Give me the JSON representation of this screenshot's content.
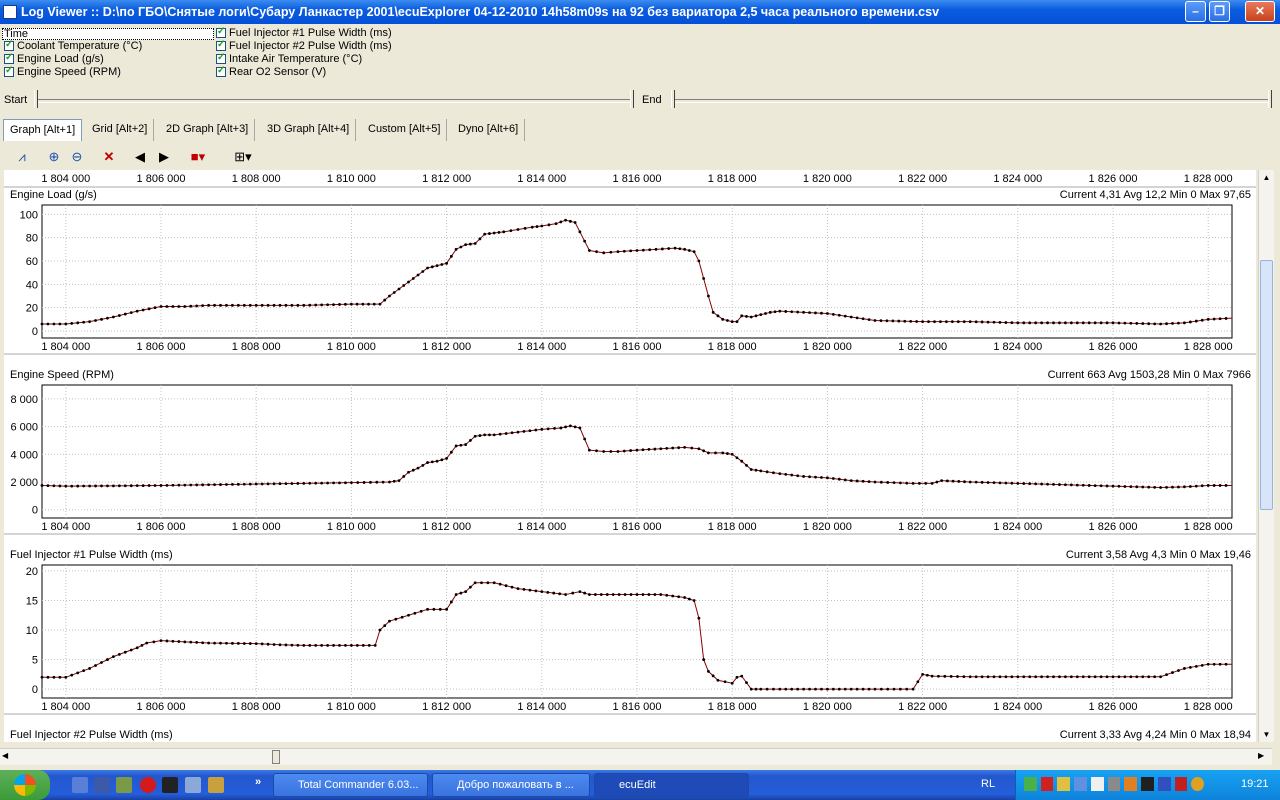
{
  "window": {
    "title": "Log Viewer :: D:\\по ГБО\\Снятые логи\\Субару Ланкастер 2001\\ecuExplorer  04-12-2010 14h58m09s на 92 без вариатора 2,5 часа реального времени.csv",
    "min_glyph": "–",
    "max_glyph": "❐",
    "close_glyph": "✕"
  },
  "channels": {
    "time_label": "Time",
    "left": [
      "Coolant Temperature (°C)",
      "Engine Load (g/s)",
      "Engine Speed (RPM)"
    ],
    "right": [
      "Fuel Injector #1 Pulse Width (ms)",
      "Fuel Injector #2 Pulse Width (ms)",
      "Intake Air Temperature (°C)",
      "Rear O2 Sensor (V)"
    ]
  },
  "range": {
    "start_label": "Start",
    "end_label": "End"
  },
  "tabs": [
    "Graph [Alt+1]",
    "Grid [Alt+2]",
    "2D Graph [Alt+3]",
    "3D Graph [Alt+4]",
    "Custom [Alt+5]",
    "Dyno [Alt+6]"
  ],
  "toolbar_icons": [
    "graph-icon",
    "zoom-in-icon",
    "zoom-out-icon",
    "delete-icon",
    "previous-icon",
    "next-icon",
    "color-icon",
    "layout-icon"
  ],
  "chart_data": [
    {
      "type": "line",
      "title": "Engine Load (g/s)",
      "stats": "Current 4,31 Avg 12,2 Min 0 Max 97,65",
      "xlim": [
        1803500,
        1828500
      ],
      "ylim": [
        -6,
        108
      ],
      "x_ticks": [
        1804000,
        1806000,
        1808000,
        1810000,
        1812000,
        1814000,
        1816000,
        1818000,
        1820000,
        1822000,
        1824000,
        1826000,
        1828000
      ],
      "x_tick_labels": [
        "1 804 000",
        "1 806 000",
        "1 808 000",
        "1 810 000",
        "1 812 000",
        "1 814 000",
        "1 816 000",
        "1 818 000",
        "1 820 000",
        "1 822 000",
        "1 824 000",
        "1 826 000",
        "1 828 000"
      ],
      "y_ticks": [
        0,
        20,
        40,
        60,
        80,
        100
      ],
      "y_tick_labels": [
        "0",
        "20",
        "40",
        "60",
        "80",
        "100"
      ],
      "series": [
        {
          "color": "#8b0000",
          "x": [
            1803500,
            1804000,
            1804500,
            1805000,
            1805500,
            1806000,
            1806500,
            1807000,
            1808000,
            1809000,
            1810000,
            1810600,
            1810800,
            1811000,
            1811200,
            1811400,
            1811600,
            1811800,
            1812000,
            1812200,
            1812400,
            1812600,
            1812800,
            1813000,
            1813200,
            1813500,
            1813800,
            1814000,
            1814300,
            1814500,
            1814700,
            1814800,
            1815000,
            1815300,
            1815600,
            1816000,
            1816400,
            1816800,
            1817000,
            1817200,
            1817300,
            1817400,
            1817500,
            1817600,
            1817800,
            1818000,
            1818100,
            1818200,
            1818400,
            1818600,
            1818800,
            1819000,
            1819500,
            1820000,
            1820500,
            1821000,
            1822000,
            1823000,
            1824000,
            1825000,
            1826000,
            1827000,
            1827500,
            1828000,
            1828500
          ],
          "y": [
            6,
            6,
            8,
            12,
            17,
            21,
            21,
            22,
            22,
            22,
            23,
            23,
            30,
            36,
            42,
            48,
            54,
            56,
            58,
            70,
            74,
            75,
            83,
            84,
            85,
            87,
            89,
            90,
            92,
            95,
            93,
            85,
            69,
            67,
            68,
            69,
            70,
            71,
            70,
            68,
            60,
            45,
            30,
            16,
            10,
            8,
            8,
            13,
            12,
            14,
            16,
            17,
            16,
            15,
            12,
            9,
            8,
            8,
            7,
            7,
            7,
            6,
            7,
            10,
            11
          ]
        }
      ]
    },
    {
      "type": "line",
      "title": "Engine Speed (RPM)",
      "stats": "Current 663 Avg 1503,28 Min 0 Max 7966",
      "xlim": [
        1803500,
        1828500
      ],
      "ylim": [
        -600,
        9000
      ],
      "x_ticks": [
        1804000,
        1806000,
        1808000,
        1810000,
        1812000,
        1814000,
        1816000,
        1818000,
        1820000,
        1822000,
        1824000,
        1826000,
        1828000
      ],
      "x_tick_labels": [
        "1 804 000",
        "1 806 000",
        "1 808 000",
        "1 810 000",
        "1 812 000",
        "1 814 000",
        "1 816 000",
        "1 818 000",
        "1 820 000",
        "1 822 000",
        "1 824 000",
        "1 826 000",
        "1 828 000"
      ],
      "y_ticks": [
        0,
        2000,
        4000,
        6000,
        8000
      ],
      "y_tick_labels": [
        "0",
        "2 000",
        "4 000",
        "6 000",
        "8 000"
      ],
      "series": [
        {
          "color": "#8b0000",
          "x": [
            1803500,
            1804000,
            1805000,
            1806000,
            1807000,
            1808000,
            1809000,
            1810000,
            1810800,
            1811000,
            1811200,
            1811400,
            1811600,
            1811800,
            1812000,
            1812200,
            1812400,
            1812600,
            1812800,
            1813000,
            1813500,
            1814000,
            1814400,
            1814600,
            1814800,
            1815000,
            1815300,
            1815600,
            1816000,
            1816500,
            1817000,
            1817300,
            1817500,
            1817800,
            1818000,
            1818200,
            1818400,
            1818600,
            1819000,
            1819500,
            1820000,
            1820500,
            1821000,
            1821800,
            1822200,
            1822400,
            1823000,
            1824000,
            1825000,
            1826000,
            1826500,
            1827000,
            1827500,
            1828000,
            1828500
          ],
          "y": [
            1750,
            1700,
            1720,
            1750,
            1800,
            1850,
            1900,
            1950,
            2000,
            2100,
            2700,
            3000,
            3400,
            3500,
            3700,
            4600,
            4700,
            5300,
            5400,
            5400,
            5600,
            5800,
            5900,
            6050,
            5900,
            4300,
            4200,
            4200,
            4300,
            4400,
            4500,
            4400,
            4100,
            4100,
            4000,
            3500,
            2900,
            2800,
            2600,
            2400,
            2300,
            2100,
            2000,
            1900,
            1900,
            2100,
            2000,
            1900,
            1800,
            1700,
            1650,
            1600,
            1650,
            1750,
            1750
          ]
        }
      ]
    },
    {
      "type": "line",
      "title": "Fuel Injector #1 Pulse Width (ms)",
      "stats": "Current 3,58 Avg 4,3 Min 0 Max 19,46",
      "xlim": [
        1803500,
        1828500
      ],
      "ylim": [
        -1.5,
        21
      ],
      "x_ticks": [
        1804000,
        1806000,
        1808000,
        1810000,
        1812000,
        1814000,
        1816000,
        1818000,
        1820000,
        1822000,
        1824000,
        1826000,
        1828000
      ],
      "x_tick_labels": [
        "1 804 000",
        "1 806 000",
        "1 808 000",
        "1 810 000",
        "1 812 000",
        "1 814 000",
        "1 816 000",
        "1 818 000",
        "1 820 000",
        "1 822 000",
        "1 824 000",
        "1 826 000",
        "1 828 000"
      ],
      "y_ticks": [
        0,
        5,
        10,
        15,
        20
      ],
      "y_tick_labels": [
        "0",
        "5",
        "10",
        "15",
        "20"
      ],
      "series": [
        {
          "color": "#8b0000",
          "x": [
            1803500,
            1804000,
            1804500,
            1805000,
            1805500,
            1805700,
            1806000,
            1806500,
            1807000,
            1808000,
            1808500,
            1809000,
            1810000,
            1810500,
            1810600,
            1810800,
            1811200,
            1811600,
            1812000,
            1812200,
            1812400,
            1812600,
            1813000,
            1813500,
            1814000,
            1814500,
            1814800,
            1815000,
            1815500,
            1816000,
            1816500,
            1817000,
            1817200,
            1817300,
            1817400,
            1817500,
            1817700,
            1818000,
            1818100,
            1818200,
            1818400,
            1818600,
            1819000,
            1820000,
            1821000,
            1821800,
            1822000,
            1822200,
            1823000,
            1824000,
            1825000,
            1826000,
            1827000,
            1827500,
            1828000,
            1828500
          ],
          "y": [
            2,
            2,
            3.5,
            5.5,
            7,
            7.8,
            8.2,
            8,
            7.8,
            7.7,
            7.5,
            7.4,
            7.4,
            7.4,
            10,
            11.5,
            12.5,
            13.5,
            13.5,
            16,
            16.5,
            18,
            18,
            17,
            16.5,
            16,
            16.5,
            16,
            16,
            16,
            16,
            15.5,
            15,
            12,
            5,
            3,
            1.5,
            1,
            2,
            2.2,
            0,
            0,
            0,
            0,
            0,
            0,
            2.5,
            2.2,
            2.1,
            2.1,
            2.1,
            2.1,
            2.1,
            3.5,
            4.2,
            4.2
          ]
        }
      ]
    },
    {
      "type": "line",
      "title": "Fuel Injector #2 Pulse Width (ms)",
      "stats": "Current 3,33 Avg 4,24 Min 0 Max 18,94"
    }
  ],
  "taskbar": {
    "apps": [
      "Total Commander 6.03...",
      "Добро пожаловать в ...",
      "ecuEdit"
    ],
    "language": "RL",
    "clock": "19:21",
    "chevron": "»"
  }
}
